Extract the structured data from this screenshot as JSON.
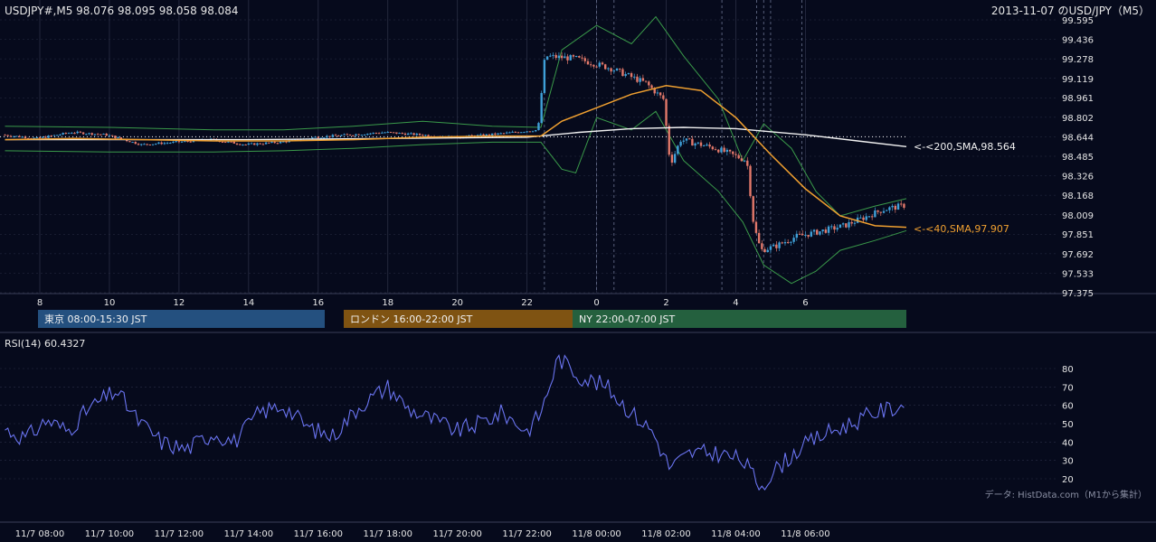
{
  "header": {
    "quote": "USDJPY#,M5 98.076 98.095 98.058 98.084",
    "title": "2013-11-07 のUSD/JPY（M5）"
  },
  "source_note": "データ: HistData.com（M1から集計）",
  "sessions": [
    {
      "label": "東京 08:00-15:30 JST",
      "color": "#24507f"
    },
    {
      "label": "ロンドン 16:00-22:00 JST",
      "color": "#7f5312"
    },
    {
      "label": "NY 22:00-07:00 JST",
      "color": "#24603e"
    }
  ],
  "colors": {
    "background": "#060a1c",
    "grid": "#2a2f45",
    "candle_up": "#3fa0d8",
    "candle_down": "#e2786a",
    "sma40": "#f0a030",
    "sma200": "#f2f2f2",
    "bollinger": "#3a9a4a",
    "rsi": "#6a74f0",
    "text": "#e6e6e6"
  },
  "chart_data": [
    {
      "type": "candlestick",
      "name": "price",
      "y_ticks": [
        "99.595",
        "99.436",
        "99.278",
        "99.119",
        "98.961",
        "98.802",
        "98.644",
        "98.485",
        "98.326",
        "98.168",
        "98.009",
        "97.851",
        "97.692",
        "97.533",
        "97.375"
      ],
      "ylim": [
        97.375,
        99.595
      ],
      "x_ticks": [
        "8",
        "10",
        "12",
        "14",
        "16",
        "18",
        "20",
        "22",
        "0",
        "2",
        "4",
        "6"
      ],
      "xlim_hours": [
        7.0,
        32.9
      ],
      "indicators": [
        {
          "name": "SMA 40",
          "label": "<-<40,SMA,97.907",
          "value": 97.907,
          "points": [
            [
              7.0,
              98.62
            ],
            [
              9.0,
              98.63
            ],
            [
              11.0,
              98.62
            ],
            [
              13.0,
              98.61
            ],
            [
              15.0,
              98.61
            ],
            [
              17.0,
              98.62
            ],
            [
              19.0,
              98.64
            ],
            [
              21.0,
              98.65
            ],
            [
              22.4,
              98.65
            ],
            [
              23.0,
              98.77
            ],
            [
              24.0,
              98.88
            ],
            [
              25.0,
              98.99
            ],
            [
              26.0,
              99.06
            ],
            [
              27.0,
              99.02
            ],
            [
              28.0,
              98.8
            ],
            [
              29.0,
              98.5
            ],
            [
              30.0,
              98.22
            ],
            [
              31.0,
              98.0
            ],
            [
              32.0,
              97.92
            ],
            [
              32.9,
              97.907
            ]
          ]
        },
        {
          "name": "SMA 200",
          "label": "<-<200,SMA,98.564",
          "value": 98.564,
          "points": [
            [
              7.0,
              98.62
            ],
            [
              10.0,
              98.62
            ],
            [
              14.0,
              98.62
            ],
            [
              18.0,
              98.63
            ],
            [
              22.0,
              98.64
            ],
            [
              23.5,
              98.68
            ],
            [
              25.0,
              98.71
            ],
            [
              26.5,
              98.72
            ],
            [
              28.0,
              98.71
            ],
            [
              30.0,
              98.66
            ],
            [
              31.5,
              98.61
            ],
            [
              32.9,
              98.564
            ]
          ]
        }
      ],
      "dotted_level": 98.644,
      "bollinger": {
        "upper": [
          [
            7.0,
            98.73
          ],
          [
            10.0,
            98.72
          ],
          [
            13.0,
            98.7
          ],
          [
            15.0,
            98.7
          ],
          [
            17.0,
            98.73
          ],
          [
            19.0,
            98.77
          ],
          [
            21.0,
            98.73
          ],
          [
            22.4,
            98.72
          ],
          [
            23.0,
            99.35
          ],
          [
            24.0,
            99.55
          ],
          [
            25.0,
            99.4
          ],
          [
            25.7,
            99.62
          ],
          [
            26.5,
            99.3
          ],
          [
            27.5,
            98.95
          ],
          [
            28.2,
            98.45
          ],
          [
            28.8,
            98.75
          ],
          [
            29.6,
            98.55
          ],
          [
            30.3,
            98.2
          ],
          [
            31.0,
            98.0
          ],
          [
            32.0,
            98.08
          ],
          [
            32.9,
            98.14
          ]
        ],
        "lower": [
          [
            7.0,
            98.53
          ],
          [
            10.0,
            98.52
          ],
          [
            13.0,
            98.52
          ],
          [
            15.0,
            98.53
          ],
          [
            17.0,
            98.55
          ],
          [
            19.0,
            98.58
          ],
          [
            21.0,
            98.6
          ],
          [
            22.4,
            98.6
          ],
          [
            23.0,
            98.38
          ],
          [
            23.4,
            98.35
          ],
          [
            24.0,
            98.8
          ],
          [
            25.0,
            98.7
          ],
          [
            25.7,
            98.85
          ],
          [
            26.5,
            98.45
          ],
          [
            27.5,
            98.2
          ],
          [
            28.2,
            97.95
          ],
          [
            28.8,
            97.6
          ],
          [
            29.6,
            97.45
          ],
          [
            30.3,
            97.55
          ],
          [
            31.0,
            97.72
          ],
          [
            32.0,
            97.8
          ],
          [
            32.9,
            97.88
          ]
        ]
      },
      "trend_path": [
        [
          7.0,
          98.66
        ],
        [
          8.0,
          98.63
        ],
        [
          9.0,
          98.68
        ],
        [
          10.0,
          98.66
        ],
        [
          11.0,
          98.58
        ],
        [
          12.0,
          98.6
        ],
        [
          13.0,
          98.62
        ],
        [
          14.0,
          98.58
        ],
        [
          15.0,
          98.6
        ],
        [
          16.0,
          98.64
        ],
        [
          17.0,
          98.66
        ],
        [
          18.0,
          98.68
        ],
        [
          19.0,
          98.66
        ],
        [
          20.0,
          98.64
        ],
        [
          21.0,
          98.66
        ],
        [
          22.4,
          98.7
        ],
        [
          22.6,
          99.3
        ],
        [
          23.5,
          99.28
        ],
        [
          24.5,
          99.2
        ],
        [
          25.5,
          99.08
        ],
        [
          26.0,
          98.95
        ],
        [
          26.2,
          98.42
        ],
        [
          26.5,
          98.62
        ],
        [
          27.5,
          98.55
        ],
        [
          28.4,
          98.45
        ],
        [
          28.6,
          97.92
        ],
        [
          28.8,
          97.72
        ],
        [
          29.2,
          97.75
        ],
        [
          29.8,
          97.83
        ],
        [
          30.6,
          97.88
        ],
        [
          31.2,
          97.92
        ],
        [
          31.8,
          97.99
        ],
        [
          32.3,
          98.05
        ],
        [
          32.9,
          98.084
        ]
      ]
    },
    {
      "type": "line",
      "name": "RSI(14)",
      "label": "RSI(14) 60.4327",
      "y_ticks": [
        "80",
        "70",
        "60",
        "50",
        "40",
        "30",
        "20"
      ],
      "ylim": [
        12,
        90
      ],
      "x_ticks": [
        "11/7 08:00",
        "11/7 10:00",
        "11/7 12:00",
        "11/7 14:00",
        "11/7 16:00",
        "11/7 18:00",
        "11/7 20:00",
        "11/7 22:00",
        "11/8 00:00",
        "11/8 02:00",
        "11/8 04:00",
        "11/8 06:00"
      ],
      "anchors": [
        [
          7.0,
          47
        ],
        [
          7.6,
          42
        ],
        [
          8.2,
          52
        ],
        [
          8.8,
          46
        ],
        [
          9.4,
          58
        ],
        [
          10.2,
          68
        ],
        [
          10.8,
          52
        ],
        [
          11.5,
          40
        ],
        [
          12.2,
          36
        ],
        [
          13.0,
          45
        ],
        [
          13.6,
          40
        ],
        [
          14.3,
          56
        ],
        [
          15.0,
          60
        ],
        [
          15.7,
          48
        ],
        [
          16.4,
          43
        ],
        [
          17.2,
          60
        ],
        [
          18.0,
          70
        ],
        [
          18.6,
          58
        ],
        [
          19.3,
          52
        ],
        [
          20.0,
          46
        ],
        [
          20.6,
          50
        ],
        [
          21.3,
          56
        ],
        [
          22.0,
          46
        ],
        [
          22.4,
          56
        ],
        [
          22.9,
          86
        ],
        [
          23.5,
          76
        ],
        [
          24.3,
          70
        ],
        [
          25.0,
          56
        ],
        [
          25.6,
          46
        ],
        [
          26.1,
          26
        ],
        [
          26.7,
          34
        ],
        [
          27.5,
          34
        ],
        [
          28.2,
          30
        ],
        [
          28.7,
          16
        ],
        [
          29.2,
          26
        ],
        [
          29.8,
          36
        ],
        [
          30.5,
          44
        ],
        [
          31.3,
          50
        ],
        [
          32.0,
          56
        ],
        [
          32.9,
          60.4
        ]
      ]
    }
  ]
}
